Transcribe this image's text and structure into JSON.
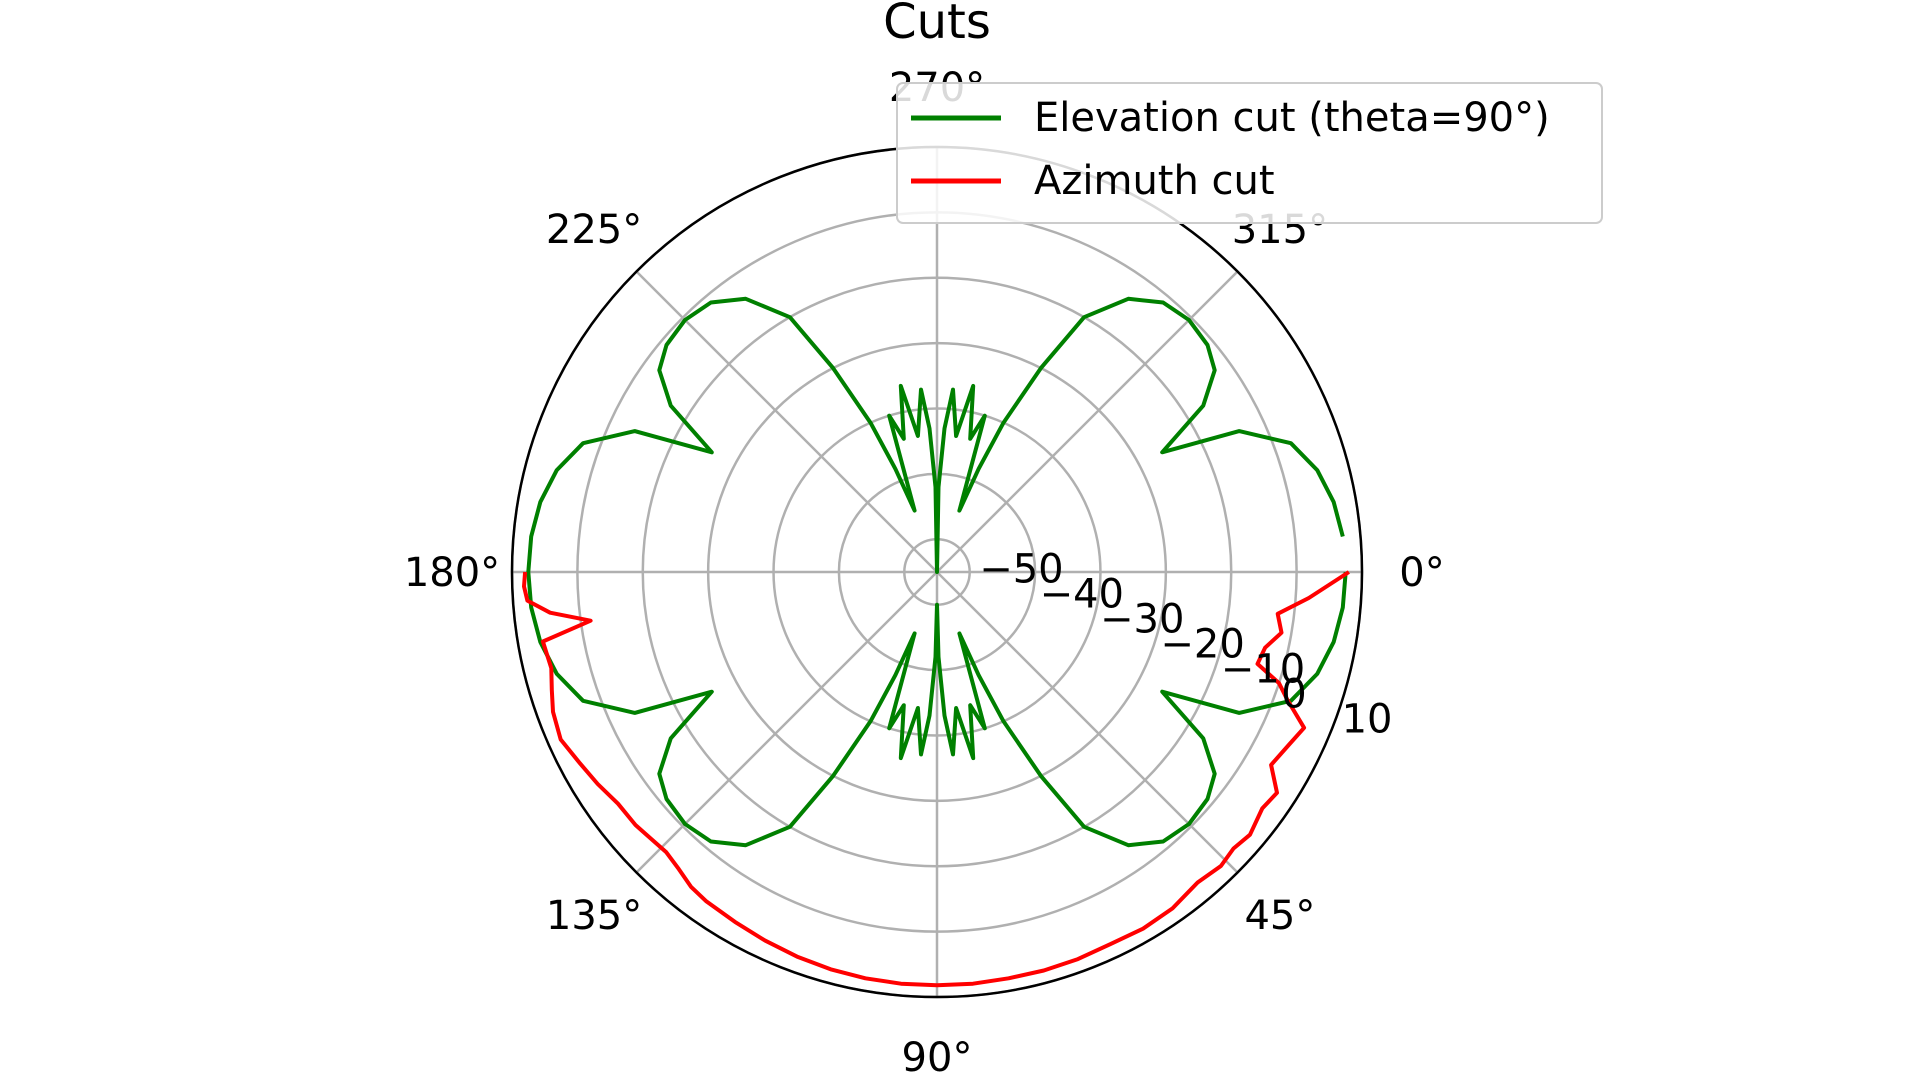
{
  "chart_data": {
    "type": "line",
    "projection": "polar",
    "title": "Cuts",
    "theta_direction": "clockwise",
    "theta_zero_location": "right",
    "r_range": [
      -55,
      10
    ],
    "r_ticks": [
      -50,
      -40,
      -30,
      -20,
      -10,
      0,
      10
    ],
    "r_tick_labels": [
      "−50",
      "−40",
      "−30",
      "−20",
      "−10",
      "0",
      "10"
    ],
    "theta_ticks": [
      0,
      45,
      90,
      135,
      180,
      225,
      270,
      315
    ],
    "theta_tick_labels": [
      "0°",
      "45°",
      "90°",
      "135°",
      "180°",
      "225°",
      "270°",
      "315°"
    ],
    "grid": true,
    "legend": "top-right",
    "series": [
      {
        "name": "Elevation cut (theta=90°)",
        "color": "#008000",
        "theta": [
          0,
          5,
          10,
          15,
          20,
          25,
          28,
          32,
          36,
          40,
          45,
          50,
          55,
          60,
          63,
          66,
          68,
          70,
          73,
          76,
          79,
          82,
          85,
          87,
          89,
          90,
          91,
          93,
          95,
          98,
          101,
          104,
          107,
          110,
          112,
          114,
          117,
          120,
          125,
          130,
          135,
          140,
          144,
          148,
          152,
          155,
          160,
          165,
          170,
          175,
          180,
          185,
          190,
          195,
          200,
          205,
          208,
          212,
          216,
          220,
          225,
          230,
          235,
          240,
          243,
          246,
          248,
          250,
          253,
          256,
          259,
          262,
          265,
          267,
          269,
          270,
          271,
          273,
          275,
          278,
          281,
          284,
          287,
          290,
          292,
          294,
          297,
          300,
          305,
          310,
          315,
          320,
          324,
          328,
          332,
          335,
          340,
          345,
          350,
          355
        ],
        "r": [
          7.5,
          7.3,
          6.6,
          5.2,
          2.6,
          -4,
          -16,
          -7,
          -2.5,
          -1,
          -0.5,
          -1.2,
          -4,
          -10,
          -20,
          -30,
          -38,
          -45,
          -30,
          -34,
          -26,
          -34,
          -27,
          -33,
          -42,
          -50,
          -42,
          -33,
          -27,
          -34,
          -26,
          -34,
          -30,
          -45,
          -38,
          -30,
          -20,
          -10,
          -4,
          -1.2,
          -0.5,
          -1,
          -2.5,
          -7,
          -16,
          -4,
          2.6,
          5.2,
          6.6,
          7.3,
          7.5,
          7.3,
          6.6,
          5.2,
          2.6,
          -4,
          -16,
          -7,
          -2.5,
          -1,
          -0.5,
          -1.2,
          -4,
          -10,
          -20,
          -30,
          -38,
          -45,
          -30,
          -34,
          -26,
          -34,
          -27,
          -33,
          -42,
          -55,
          -42,
          -33,
          -27,
          -34,
          -26,
          -34,
          -30,
          -45,
          -38,
          -30,
          -20,
          -10,
          -4,
          -1.2,
          -0.5,
          -1,
          -2.5,
          -7,
          -16,
          -4,
          2.6,
          5.2,
          6.6,
          7.3
        ]
      },
      {
        "name": "Azimuth cut",
        "color": "#ff0000",
        "theta": [
          0,
          4,
          7,
          10,
          13,
          16,
          18,
          20,
          23,
          26,
          30,
          33,
          36,
          40,
          43,
          46,
          50,
          55,
          60,
          65,
          70,
          75,
          80,
          85,
          90,
          95,
          100,
          105,
          110,
          115,
          120,
          125,
          128,
          131,
          134,
          137,
          140,
          144,
          148,
          152,
          156,
          160,
          163,
          166,
          170,
          172,
          174,
          176,
          178,
          180
        ],
        "r": [
          8,
          2,
          -2.5,
          -1.5,
          -3.5,
          -4,
          0,
          2,
          6,
          5,
          4,
          7,
          6.5,
          7.5,
          7,
          7.5,
          7,
          7.8,
          8,
          7.8,
          8,
          8.1,
          8.1,
          8.2,
          8.2,
          8.2,
          8.1,
          7.9,
          7.6,
          7.2,
          6.8,
          6.5,
          6.1,
          5.2,
          4.6,
          4.8,
          5.2,
          5.3,
          6.2,
          7,
          8,
          7.5,
          6.6,
          5.8,
          6.2,
          -1.5,
          4.5,
          7.8,
          8.2,
          8
        ]
      }
    ]
  }
}
